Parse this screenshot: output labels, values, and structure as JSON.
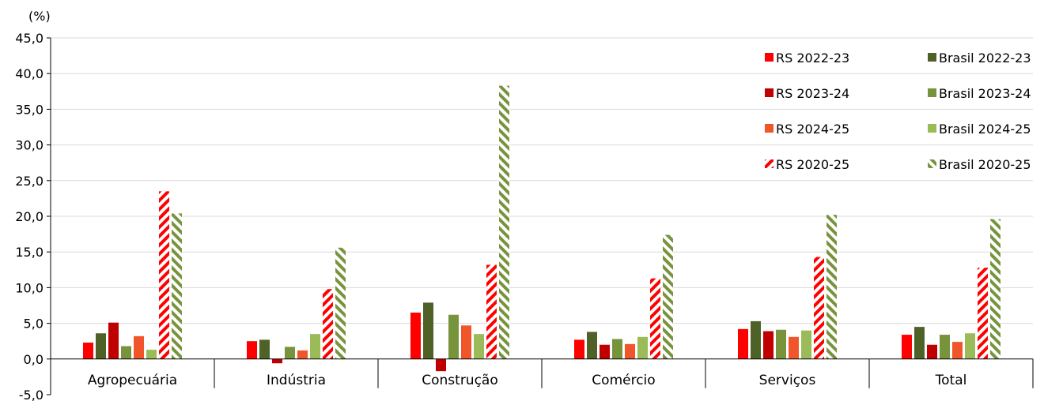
{
  "chart_data": {
    "type": "bar",
    "y_unit_label": "(%)",
    "ylim": [
      -5,
      45
    ],
    "ytick_step": 5,
    "ytick_labels": [
      "-5,0",
      "0,0",
      "5,0",
      "10,0",
      "15,0",
      "20,0",
      "25,0",
      "30,0",
      "35,0",
      "40,0",
      "45,0"
    ],
    "grid": true,
    "legend_position": "top-right",
    "categories": [
      "Agropecuária",
      "Indústria",
      "Construção",
      "Comércio",
      "Serviços",
      "Total"
    ],
    "series": [
      {
        "name": "RS 2022-23",
        "color": "#ff0000",
        "pattern": "solid",
        "values": [
          2.3,
          2.5,
          6.5,
          2.7,
          4.2,
          3.4
        ]
      },
      {
        "name": "Brasil 2022-23",
        "color": "#4e6228",
        "pattern": "solid",
        "values": [
          3.6,
          2.7,
          7.9,
          3.8,
          5.3,
          4.5
        ]
      },
      {
        "name": "RS 2023-24",
        "color": "#c00000",
        "pattern": "solid",
        "values": [
          5.1,
          -0.6,
          -1.7,
          2.0,
          3.9,
          2.0
        ]
      },
      {
        "name": "Brasil 2023-24",
        "color": "#77933c",
        "pattern": "solid",
        "values": [
          1.8,
          1.7,
          6.2,
          2.8,
          4.1,
          3.4
        ]
      },
      {
        "name": "RS 2024-25",
        "color": "#f0562a",
        "pattern": "solid",
        "values": [
          3.2,
          1.2,
          4.7,
          2.1,
          3.1,
          2.4
        ]
      },
      {
        "name": "Brasil 2024-25",
        "color": "#9bbb59",
        "pattern": "solid",
        "values": [
          1.3,
          3.5,
          3.5,
          3.1,
          4.0,
          3.6
        ]
      },
      {
        "name": "RS 2020-25",
        "color": "#ff0000",
        "pattern": "hatch",
        "values": [
          23.5,
          9.8,
          13.2,
          11.3,
          14.3,
          12.8
        ]
      },
      {
        "name": "Brasil 2020-25",
        "color": "#77933c",
        "pattern": "hatch",
        "values": [
          20.4,
          15.6,
          38.3,
          17.4,
          20.2,
          19.6
        ]
      }
    ]
  }
}
